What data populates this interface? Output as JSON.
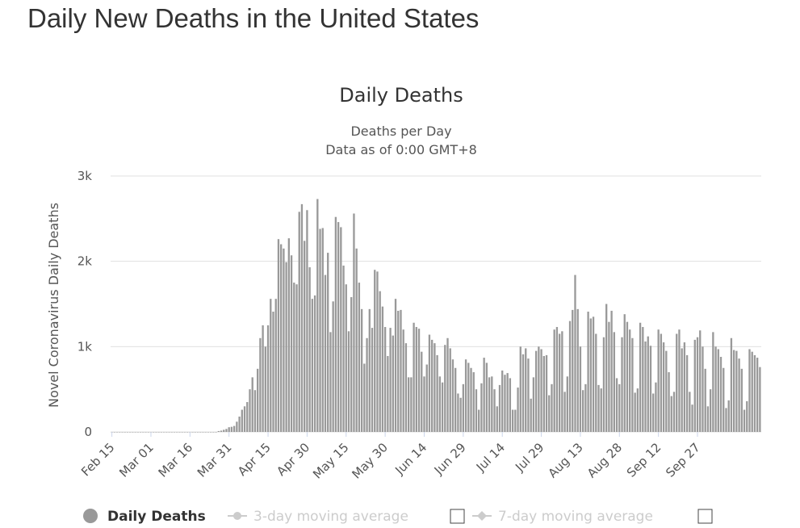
{
  "page_title": "Daily New Deaths in the United States",
  "chart_data": {
    "type": "bar",
    "title": "Daily Deaths",
    "subtitle_lines": [
      "Deaths per Day",
      "Data as of 0:00 GMT+8"
    ],
    "ylabel": "Novel Coronavirus Daily Deaths",
    "xlabel": "",
    "ylim": [
      0,
      3000
    ],
    "y_ticks": [
      0,
      1000,
      2000,
      3000
    ],
    "y_tick_labels": [
      "0",
      "1k",
      "2k",
      "3k"
    ],
    "x_start": "Feb 15",
    "x_tick_labels": [
      "Feb 15",
      "Mar 01",
      "Mar 16",
      "Mar 31",
      "Apr 15",
      "Apr 30",
      "May 15",
      "May 30",
      "Jun 14",
      "Jun 29",
      "Jul 14",
      "Jul 29",
      "Aug 13",
      "Aug 28",
      "Sep 12",
      "Sep 27"
    ],
    "bar_color": "#999999",
    "grid": true,
    "series": [
      {
        "name": "Daily Deaths",
        "values": [
          0,
          0,
          0,
          0,
          0,
          0,
          0,
          0,
          0,
          0,
          0,
          0,
          0,
          0,
          0,
          0,
          0,
          0,
          0,
          0,
          0,
          0,
          0,
          0,
          0,
          0,
          0,
          0,
          0,
          0,
          0,
          0,
          0,
          0,
          0,
          0,
          0,
          0,
          0,
          0,
          0,
          10,
          15,
          25,
          35,
          55,
          60,
          70,
          120,
          180,
          260,
          300,
          350,
          500,
          640,
          490,
          740,
          1100,
          1250,
          1000,
          1250,
          1560,
          1410,
          1560,
          2260,
          2200,
          2150,
          1990,
          2270,
          2070,
          1750,
          1730,
          2580,
          2670,
          2240,
          2600,
          1930,
          1560,
          1600,
          2730,
          2380,
          2390,
          1840,
          2100,
          1170,
          1530,
          2520,
          2460,
          2400,
          1950,
          1730,
          1180,
          1580,
          2560,
          2150,
          1750,
          1440,
          800,
          1100,
          1440,
          1220,
          1900,
          1880,
          1650,
          1470,
          1230,
          890,
          1220,
          1130,
          1560,
          1420,
          1430,
          1200,
          1040,
          640,
          640,
          1280,
          1230,
          1210,
          940,
          650,
          790,
          1140,
          1080,
          1040,
          900,
          650,
          580,
          1020,
          1100,
          980,
          850,
          750,
          450,
          400,
          560,
          850,
          810,
          750,
          700,
          500,
          260,
          570,
          870,
          810,
          640,
          650,
          500,
          300,
          550,
          720,
          670,
          690,
          630,
          260,
          260,
          520,
          1000,
          910,
          980,
          860,
          390,
          640,
          950,
          1000,
          970,
          890,
          900,
          430,
          560,
          1200,
          1230,
          1150,
          1180,
          470,
          650,
          1300,
          1430,
          1840,
          1440,
          1000,
          490,
          560,
          1410,
          1330,
          1350,
          1150,
          550,
          510,
          1110,
          1500,
          1290,
          1420,
          1170,
          630,
          560,
          1110,
          1380,
          1290,
          1200,
          1100,
          460,
          510,
          1280,
          1230,
          1060,
          1120,
          1010,
          450,
          580,
          1200,
          1150,
          1050,
          950,
          700,
          420,
          470,
          1150,
          1200,
          980,
          1050,
          900,
          470,
          320,
          1080,
          1110,
          1190,
          1000,
          740,
          300,
          500,
          1170,
          1000,
          970,
          880,
          750,
          280,
          370,
          1100,
          960,
          950,
          860,
          740,
          260,
          360,
          970,
          940,
          900,
          870,
          760
        ]
      }
    ],
    "legend": [
      {
        "label": "Daily Deaths",
        "marker": "circle",
        "active": true,
        "color": "#999999"
      },
      {
        "label": "3-day moving average",
        "marker": "circle-line",
        "active": false,
        "color": "#cccccc",
        "checkbox": true
      },
      {
        "label": "7-day moving average",
        "marker": "diamond-line",
        "active": false,
        "color": "#cccccc",
        "checkbox": true
      }
    ],
    "legend_position": "bottom"
  }
}
